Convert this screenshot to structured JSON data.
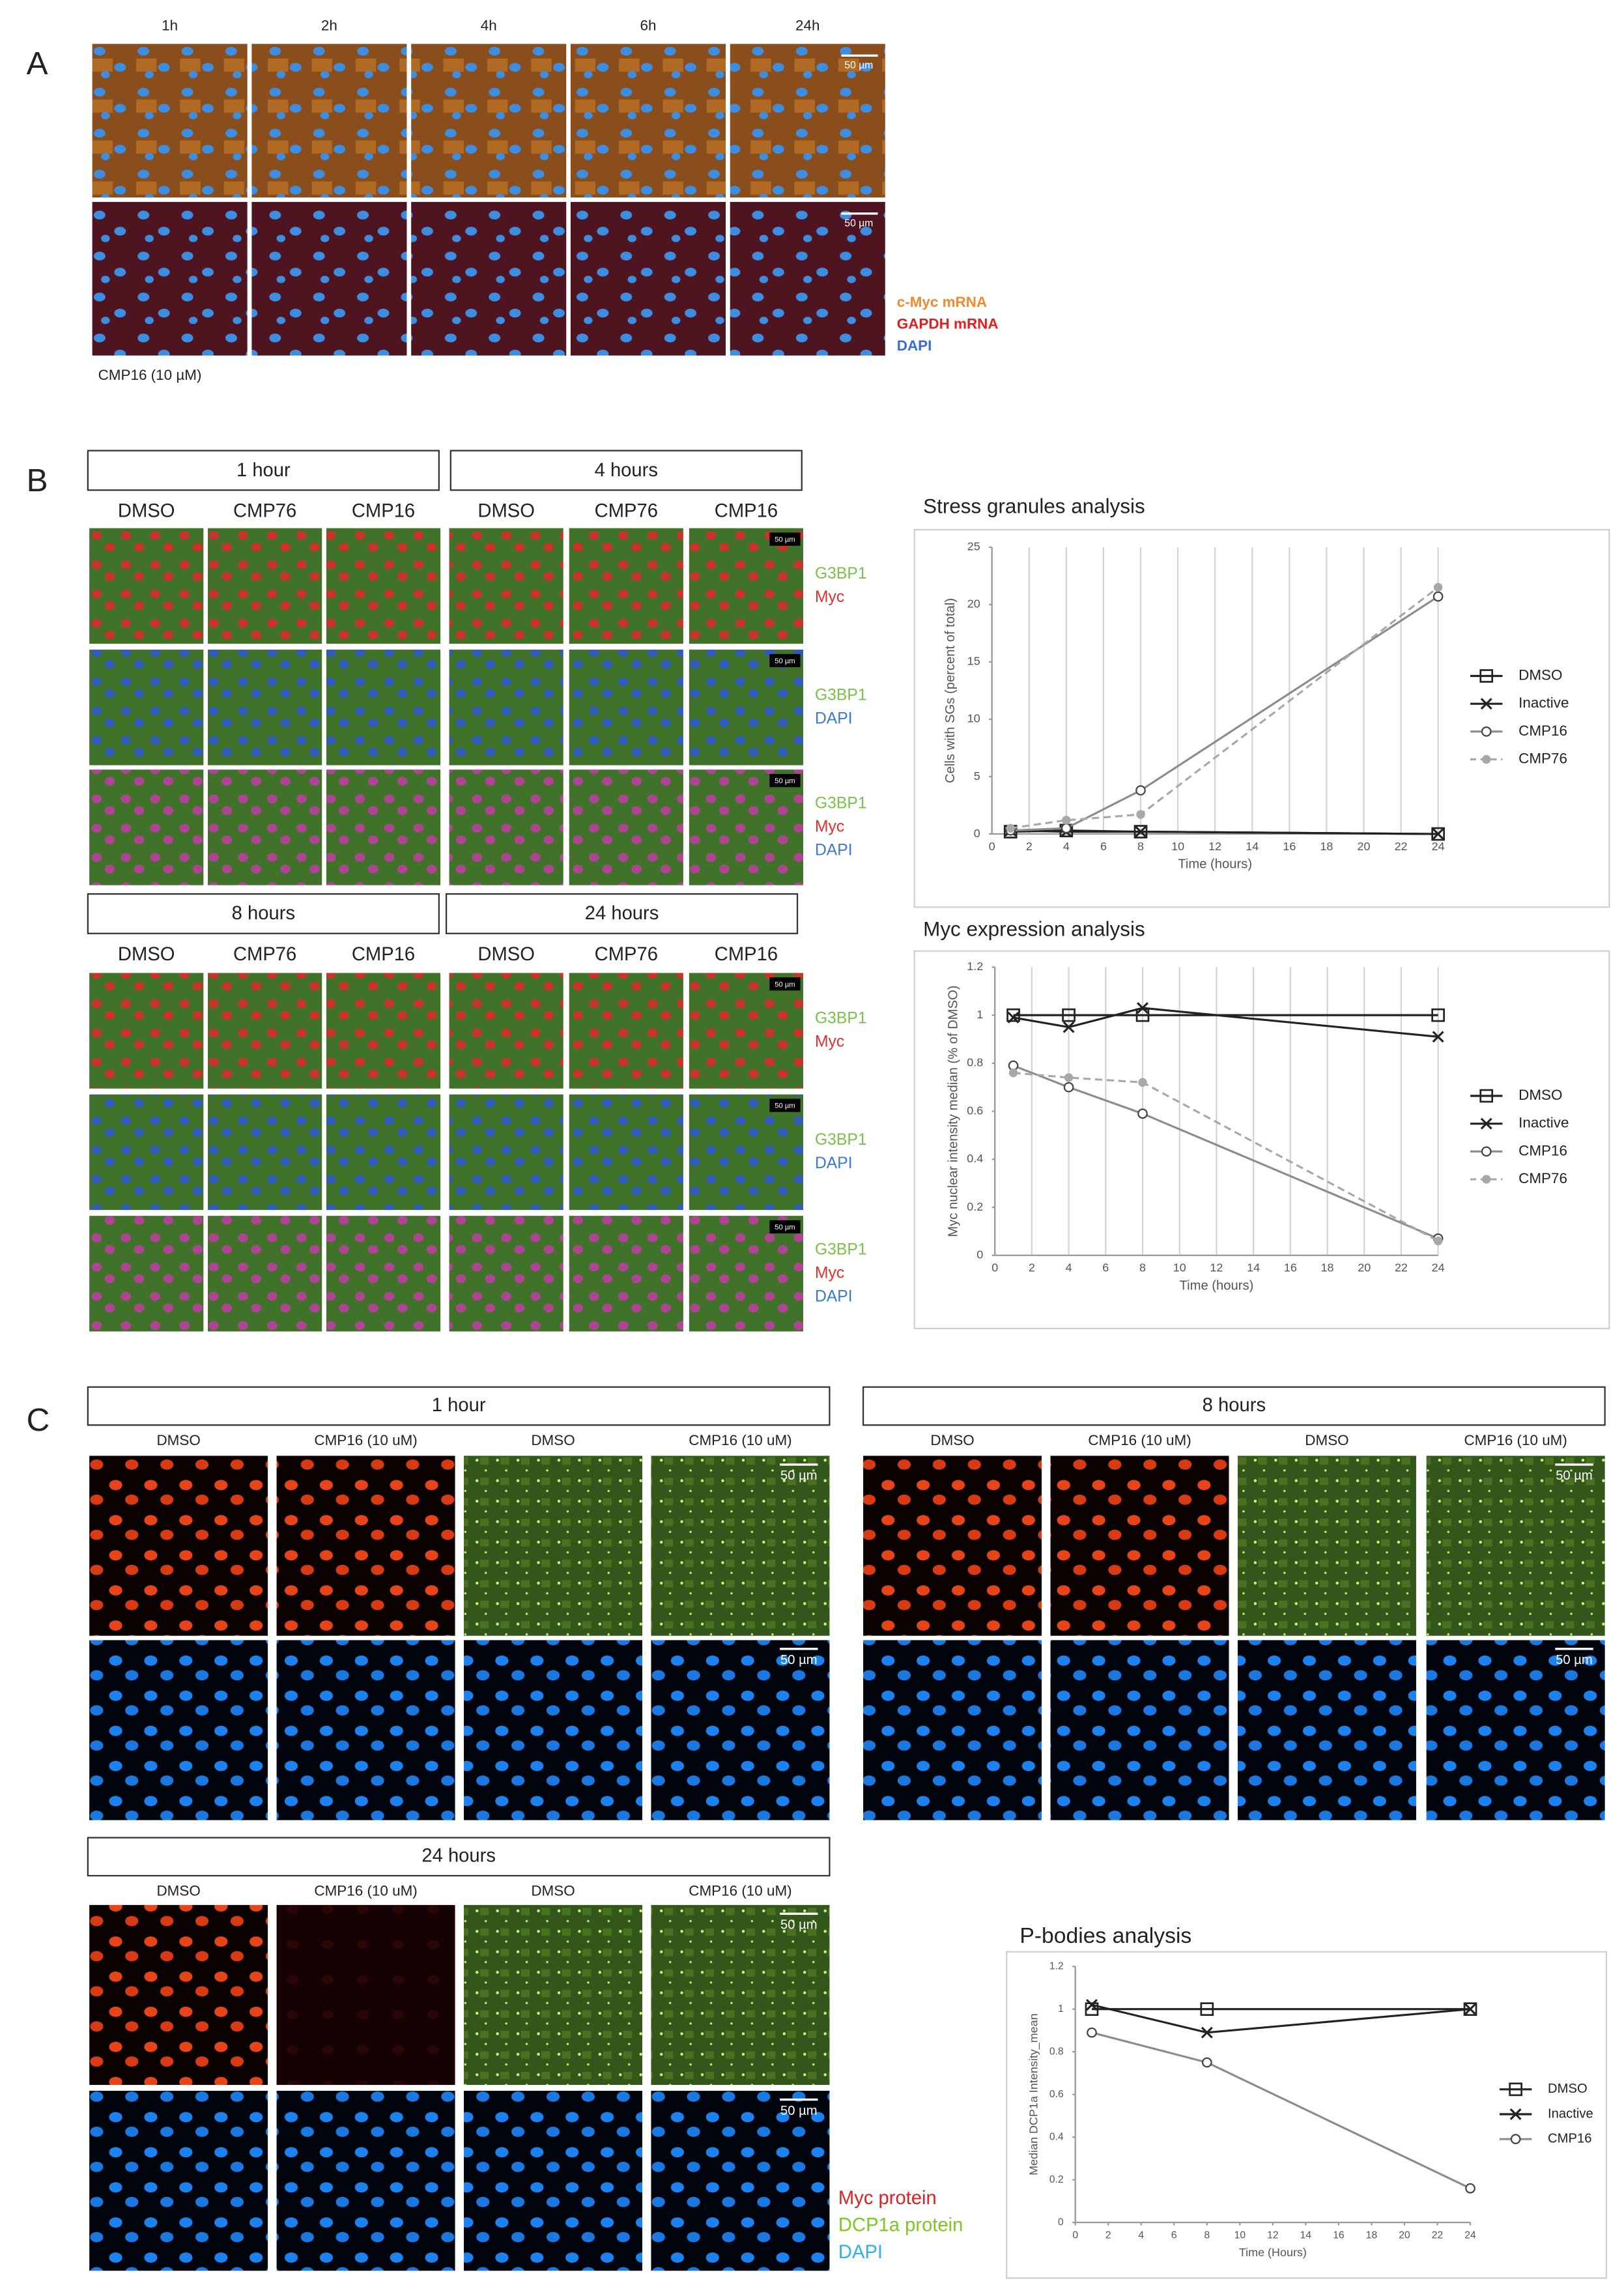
{
  "panel_a": {
    "label": "A",
    "timepoints": [
      "1h",
      "2h",
      "4h",
      "6h",
      "24h"
    ],
    "scale_bar": "50 µm",
    "legend": [
      "c-Myc mRNA",
      "GAPDH mRNA",
      "DAPI"
    ],
    "treatment": "CMP16 (10 µM)"
  },
  "panel_b": {
    "label": "B",
    "scale_bar": "50 µm",
    "groups": [
      {
        "title": "1 hour",
        "columns": [
          "DMSO",
          "CMP76",
          "CMP16"
        ]
      },
      {
        "title": "4 hours",
        "columns": [
          "DMSO",
          "CMP76",
          "CMP16"
        ]
      },
      {
        "title": "8 hours",
        "columns": [
          "DMSO",
          "CMP76",
          "CMP16"
        ]
      },
      {
        "title": "24 hours",
        "columns": [
          "DMSO",
          "CMP76",
          "CMP16"
        ]
      }
    ],
    "channel_labels": [
      [
        "G3BP1",
        "Myc"
      ],
      [
        "G3BP1",
        "DAPI"
      ],
      [
        "G3BP1",
        "Myc",
        "DAPI"
      ]
    ]
  },
  "panel_c": {
    "label": "C",
    "scale_bar": "50 µm",
    "groups": [
      {
        "title": "1 hour",
        "columns": [
          "DMSO",
          "CMP16 (10 uM)",
          "DMSO",
          "CMP16 (10 uM)"
        ]
      },
      {
        "title": "8 hours",
        "columns": [
          "DMSO",
          "CMP16 (10 uM)",
          "DMSO",
          "CMP16 (10 uM)"
        ]
      },
      {
        "title": "24 hours",
        "columns": [
          "DMSO",
          "CMP16 (10 uM)",
          "DMSO",
          "CMP16 (10 uM)"
        ]
      }
    ],
    "legend": [
      "Myc protein",
      "DCP1a protein",
      "DAPI"
    ]
  },
  "chart_data": [
    {
      "type": "line",
      "title": "Stress granules analysis",
      "x_label": "Time (hours)",
      "y_label": "Cells with SGs (percent of total)",
      "x": [
        1,
        4,
        8,
        24
      ],
      "xlim": [
        0,
        24
      ],
      "xticks": [
        0,
        2,
        4,
        6,
        8,
        10,
        12,
        14,
        16,
        18,
        20,
        22,
        24
      ],
      "ylim": [
        0,
        25
      ],
      "yticks": [
        0,
        5,
        10,
        15,
        20,
        25
      ],
      "grid": "x",
      "legend": "right",
      "series": [
        {
          "name": "DMSO",
          "color": "#222222",
          "marker": "square",
          "dash": false,
          "values": [
            0.2,
            0.3,
            0.2,
            0
          ]
        },
        {
          "name": "Inactive",
          "color": "#222222",
          "marker": "x",
          "dash": false,
          "values": [
            0.3,
            0.2,
            0.2,
            0
          ]
        },
        {
          "name": "CMP16",
          "color": "#8c8c8c",
          "marker": "circle",
          "dash": false,
          "values": [
            0.3,
            0.5,
            3.8,
            20.7
          ]
        },
        {
          "name": "CMP76",
          "color": "#a8a8a8",
          "marker": "dot",
          "dash": true,
          "values": [
            0.5,
            1.2,
            1.7,
            21.5
          ]
        }
      ]
    },
    {
      "type": "line",
      "title": "Myc expression analysis",
      "x_label": "Time (hours)",
      "y_label": "Myc nuclear intensity median (% of DMSO)",
      "x": [
        1,
        4,
        8,
        24
      ],
      "xlim": [
        0,
        24
      ],
      "xticks": [
        0,
        2,
        4,
        6,
        8,
        10,
        12,
        14,
        16,
        18,
        20,
        22,
        24
      ],
      "ylim": [
        0,
        1.2
      ],
      "yticks": [
        0,
        0.2,
        0.4,
        0.6,
        0.8,
        1,
        1.2
      ],
      "grid": "x",
      "legend": "right",
      "series": [
        {
          "name": "DMSO",
          "color": "#222222",
          "marker": "square",
          "dash": false,
          "values": [
            1,
            1,
            1,
            1
          ]
        },
        {
          "name": "Inactive",
          "color": "#222222",
          "marker": "x",
          "dash": false,
          "values": [
            0.99,
            0.95,
            1.03,
            0.91
          ]
        },
        {
          "name": "CMP16",
          "color": "#8c8c8c",
          "marker": "circle",
          "dash": false,
          "values": [
            0.79,
            0.7,
            0.59,
            0.07
          ]
        },
        {
          "name": "CMP76",
          "color": "#a8a8a8",
          "marker": "dot",
          "dash": true,
          "values": [
            0.76,
            0.74,
            0.72,
            0.06
          ]
        }
      ]
    },
    {
      "type": "line",
      "title": "P-bodies analysis",
      "x_label": "Time (Hours)",
      "y_label": "Median DCP1a Intensity_mean",
      "x": [
        1,
        8,
        24
      ],
      "xlim": [
        0,
        24
      ],
      "xticks": [
        0,
        2,
        4,
        6,
        8,
        10,
        12,
        14,
        16,
        18,
        20,
        22,
        24
      ],
      "ylim": [
        0,
        1.2
      ],
      "yticks": [
        0,
        0.2,
        0.4,
        0.6,
        0.8,
        1,
        1.2
      ],
      "grid": false,
      "legend": "right",
      "series": [
        {
          "name": "DMSO",
          "color": "#222222",
          "marker": "square",
          "dash": false,
          "values": [
            1,
            1,
            1
          ]
        },
        {
          "name": "Inactive",
          "color": "#222222",
          "marker": "x",
          "dash": false,
          "values": [
            1.02,
            0.89,
            1.0
          ]
        },
        {
          "name": "CMP16",
          "color": "#8c8c8c",
          "marker": "circle",
          "dash": false,
          "values": [
            0.89,
            0.75,
            0.16
          ]
        }
      ]
    }
  ]
}
